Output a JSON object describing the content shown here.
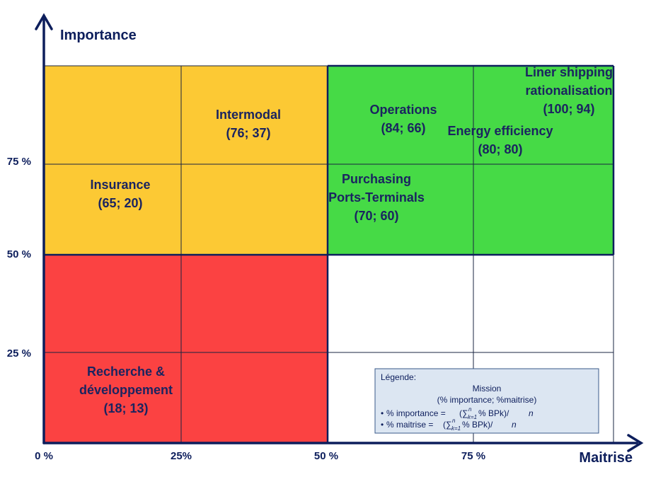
{
  "axes": {
    "y_title": "Importance",
    "x_title": "Maitrise",
    "x_ticks": [
      "0 %",
      "25%",
      "50 %",
      "75 %"
    ],
    "y_ticks": [
      "25 %",
      "50 %",
      "75 %"
    ]
  },
  "colors": {
    "high_importance_low_mastery": "#fcc934",
    "high_importance_high_mastery": "#46da46",
    "low_importance_low_mastery": "#fb4242",
    "low_importance_high_mastery": "#ffffff",
    "axis": "#0d1e5c",
    "label_text": "#1a2460",
    "legend_bg": "#dce6f2"
  },
  "missions": [
    {
      "label_lines": [
        "Intermodal",
        "(76; 37)"
      ]
    },
    {
      "label_lines": [
        "Insurance",
        "(65; 20)"
      ]
    },
    {
      "label_lines": [
        "Operations",
        "(84; 66)"
      ]
    },
    {
      "label_lines": [
        "Energy efficiency",
        "(80; 80)"
      ]
    },
    {
      "label_lines": [
        "Liner shipping",
        "rationalisation",
        "(100; 94)"
      ]
    },
    {
      "label_lines": [
        "Purchasing",
        "Ports-Terminals",
        "(70; 60)"
      ]
    },
    {
      "label_lines": [
        "Recherche &",
        "développement",
        "(18; 13)"
      ]
    }
  ],
  "legend": {
    "title": "Légende:",
    "line1": "Mission",
    "line2": "(% importance; %maitrise)",
    "bullet": "•",
    "importance_label": "% importance =",
    "maitrise_label": "% maitrise =",
    "sum_symbol": "∑",
    "sum_upper": "n",
    "sum_lower": "k=1",
    "importance_formula_body": "% BPk)/",
    "maitrise_formula_body": "% BPk)/",
    "formula_n": "n"
  }
}
